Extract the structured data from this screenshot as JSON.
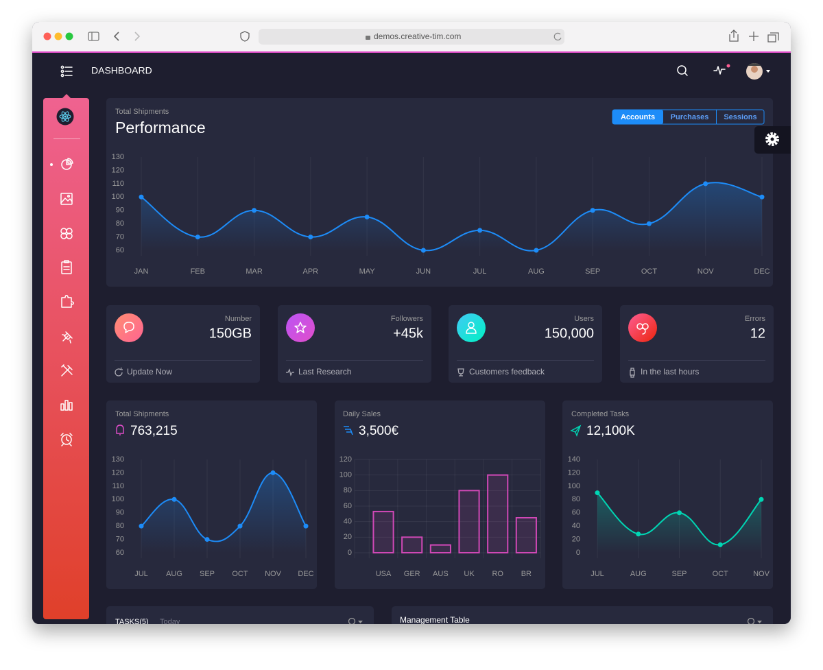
{
  "browser": {
    "url": "demos.creative-tim.com"
  },
  "navbar": {
    "title": "DASHBOARD"
  },
  "tabs": [
    "Accounts",
    "Purchases",
    "Sessions"
  ],
  "stats": [
    {
      "label": "Number",
      "value": "150GB",
      "footer": "Update Now"
    },
    {
      "label": "Followers",
      "value": "+45k",
      "footer": "Last Research"
    },
    {
      "label": "Users",
      "value": "150,000",
      "footer": "Customers feedback"
    },
    {
      "label": "Errors",
      "value": "12",
      "footer": "In the last hours"
    }
  ],
  "tasks": {
    "title": "TASKS(5)",
    "subtitle": "Today"
  },
  "table": {
    "title": "Management Table"
  },
  "chart_data": [
    {
      "type": "line",
      "subtitle": "Total Shipments",
      "title": "Performance",
      "categories": [
        "JAN",
        "FEB",
        "MAR",
        "APR",
        "MAY",
        "JUN",
        "JUL",
        "AUG",
        "SEP",
        "OCT",
        "NOV",
        "DEC"
      ],
      "values": [
        100,
        70,
        90,
        70,
        85,
        60,
        75,
        60,
        90,
        80,
        110,
        100
      ],
      "color": "#1d8cf8",
      "ylim": [
        60,
        130
      ],
      "yticks": [
        60,
        70,
        80,
        90,
        100,
        110,
        120,
        130
      ],
      "grid": {
        "x": true,
        "y": false
      }
    },
    {
      "type": "line",
      "title": "Total Shipments",
      "subtitle": "763,215",
      "categories": [
        "JUL",
        "AUG",
        "SEP",
        "OCT",
        "NOV",
        "DEC"
      ],
      "values": [
        80,
        100,
        70,
        80,
        120,
        80
      ],
      "color": "#1d8cf8",
      "ylim": [
        60,
        130
      ],
      "yticks": [
        60,
        70,
        80,
        90,
        100,
        110,
        120,
        130
      ],
      "grid": {
        "x": true,
        "y": false
      }
    },
    {
      "type": "bar",
      "title": "Daily Sales",
      "subtitle": "3,500€",
      "categories": [
        "USA",
        "GER",
        "AUS",
        "UK",
        "RO",
        "BR"
      ],
      "values": [
        53,
        20,
        10,
        80,
        100,
        45
      ],
      "color": "#d048b6",
      "ylim": [
        0,
        120
      ],
      "yticks": [
        0,
        20,
        40,
        60,
        80,
        100,
        120
      ],
      "grid": {
        "x": true,
        "y": true
      }
    },
    {
      "type": "line",
      "title": "Completed Tasks",
      "subtitle": "12,100K",
      "categories": [
        "JUL",
        "AUG",
        "SEP",
        "OCT",
        "NOV"
      ],
      "values": [
        90,
        28,
        60,
        12,
        80
      ],
      "color": "#00d6b4",
      "ylim": [
        0,
        140
      ],
      "yticks": [
        0,
        20,
        40,
        60,
        80,
        100,
        120,
        140
      ],
      "grid": {
        "x": true,
        "y": false
      }
    }
  ]
}
